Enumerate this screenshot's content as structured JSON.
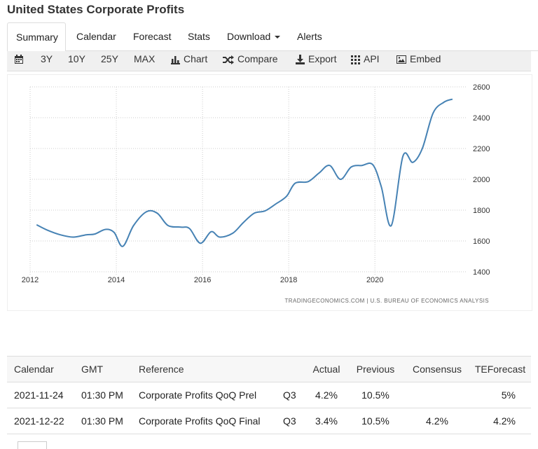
{
  "page": {
    "title": "United States Corporate Profits"
  },
  "tabs": [
    {
      "label": "Summary",
      "active": true
    },
    {
      "label": "Calendar"
    },
    {
      "label": "Forecast"
    },
    {
      "label": "Stats"
    },
    {
      "label": "Download"
    },
    {
      "label": "Alerts"
    }
  ],
  "toolbar": {
    "range_3y": "3Y",
    "range_10y": "10Y",
    "range_25y": "25Y",
    "range_max": "MAX",
    "chart": "Chart",
    "compare": "Compare",
    "export": "Export",
    "api": "API",
    "embed": "Embed"
  },
  "chart_data": {
    "type": "line",
    "source": "TRADINGECONOMICS.COM  |  U.S. BUREAU OF ECONOMICS ANALYSIS",
    "line_color": "#4682b4",
    "x_ticks": [
      "2012",
      "2014",
      "2016",
      "2018",
      "2020"
    ],
    "y_ticks": [
      "1400",
      "1600",
      "1800",
      "2000",
      "2200",
      "2400",
      "2600"
    ],
    "ylim": [
      1400,
      2600
    ],
    "xlim": [
      2012.0,
      2021.85
    ],
    "grid": true,
    "x": [
      2012.15,
      2012.4,
      2012.7,
      2013.0,
      2013.3,
      2013.5,
      2013.75,
      2013.95,
      2014.15,
      2014.4,
      2014.7,
      2014.95,
      2015.2,
      2015.5,
      2015.7,
      2015.95,
      2016.2,
      2016.4,
      2016.7,
      2016.95,
      2017.2,
      2017.45,
      2017.7,
      2017.95,
      2018.15,
      2018.45,
      2018.7,
      2018.95,
      2019.2,
      2019.45,
      2019.7,
      2019.95,
      2020.15,
      2020.38,
      2020.65,
      2020.88,
      2021.1,
      2021.35,
      2021.6,
      2021.8
    ],
    "y": [
      1705,
      1670,
      1640,
      1625,
      1640,
      1645,
      1675,
      1655,
      1565,
      1700,
      1790,
      1780,
      1700,
      1690,
      1680,
      1585,
      1660,
      1625,
      1650,
      1720,
      1780,
      1795,
      1840,
      1890,
      1975,
      1985,
      2040,
      2090,
      2000,
      2080,
      2090,
      2095,
      1950,
      1700,
      2150,
      2110,
      2200,
      2430,
      2500,
      2520
    ]
  },
  "calendar": {
    "headers": [
      "Calendar",
      "GMT",
      "Reference",
      "",
      "Actual",
      "Previous",
      "Consensus",
      "TEForecast"
    ],
    "rows": [
      {
        "date": "2021-11-24",
        "gmt": "01:30 PM",
        "reference": "Corporate Profits QoQ Prel",
        "period": "Q3",
        "actual": "4.2%",
        "previous": "10.5%",
        "consensus": "",
        "teforecast": "5%"
      },
      {
        "date": "2021-12-22",
        "gmt": "01:30 PM",
        "reference": "Corporate Profits QoQ Final",
        "period": "Q3",
        "actual": "3.4%",
        "previous": "10.5%",
        "consensus": "4.2%",
        "teforecast": "4.2%"
      }
    ]
  }
}
